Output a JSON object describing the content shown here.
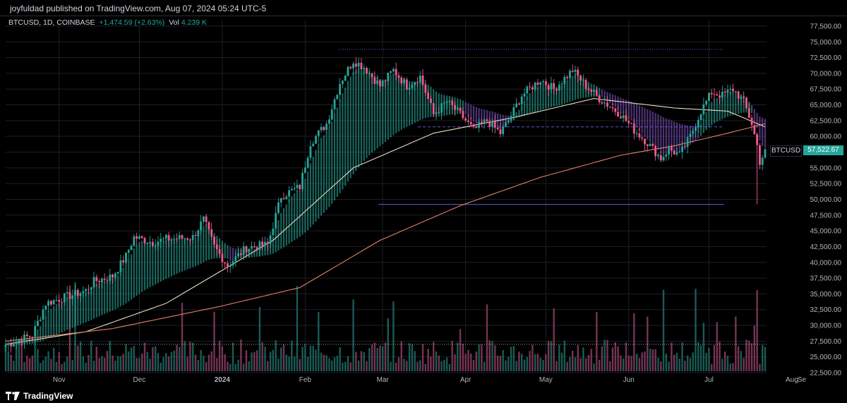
{
  "header": {
    "publisher_line": "joyfuldad published on TradingView.com, Aug 07, 2024 05:24 UTC-5"
  },
  "legend": {
    "symbol": "BTCUSD, 1D, COINBASE",
    "change": "+1,474.59 (+2.63%)",
    "volume_label": "Vol",
    "volume_value": "4.239 K"
  },
  "price_tag": {
    "symbol": "BTCUSD",
    "value": "57,522.67"
  },
  "footer": {
    "logo_text": "TradingView"
  },
  "colors": {
    "up": "#26a69a",
    "down": "#ef5b8c",
    "grid": "#1c1f26",
    "level": "#5b5bd6",
    "ma_fast": "#e8dcc0",
    "ma_slow": "#e0806a"
  },
  "chart_data": {
    "type": "candlestick",
    "ylim": [
      22500,
      78500
    ],
    "y_ticks": [
      "22,500.00",
      "25,000.00",
      "27,500.00",
      "30,000.00",
      "32,500.00",
      "35,000.00",
      "37,500.00",
      "40,000.00",
      "42,500.00",
      "45,000.00",
      "47,500.00",
      "50,000.00",
      "52,500.00",
      "55,000.00",
      "57,500.00",
      "60,000.00",
      "62,500.00",
      "65,000.00",
      "67,500.00",
      "70,000.00",
      "72,500.00",
      "75,000.00",
      "77,500.00"
    ],
    "x_labels": [
      "Nov",
      "Dec",
      "2024",
      "Feb",
      "Mar",
      "Apr",
      "May",
      "Jun",
      "Jul",
      "Aug",
      "Se"
    ],
    "close_path": [
      [
        0,
        26900
      ],
      [
        10,
        28500
      ],
      [
        15,
        33500
      ],
      [
        20,
        34200
      ],
      [
        30,
        35500
      ],
      [
        33,
        37000
      ],
      [
        40,
        37800
      ],
      [
        45,
        41000
      ],
      [
        48,
        44000
      ],
      [
        55,
        43200
      ],
      [
        60,
        43700
      ],
      [
        70,
        44000
      ],
      [
        74,
        46800
      ],
      [
        78,
        42500
      ],
      [
        83,
        39500
      ],
      [
        90,
        42300
      ],
      [
        98,
        42800
      ],
      [
        103,
        50500
      ],
      [
        110,
        52000
      ],
      [
        114,
        59000
      ],
      [
        120,
        62000
      ],
      [
        125,
        68500
      ],
      [
        130,
        72000
      ],
      [
        134,
        71000
      ],
      [
        140,
        68000
      ],
      [
        145,
        70500
      ],
      [
        150,
        68000
      ],
      [
        155,
        69500
      ],
      [
        160,
        63500
      ],
      [
        165,
        65500
      ],
      [
        170,
        63500
      ],
      [
        175,
        61000
      ],
      [
        180,
        62500
      ],
      [
        185,
        60500
      ],
      [
        188,
        62500
      ],
      [
        193,
        66500
      ],
      [
        200,
        69000
      ],
      [
        205,
        67500
      ],
      [
        212,
        70500
      ],
      [
        217,
        68000
      ],
      [
        222,
        66000
      ],
      [
        230,
        63500
      ],
      [
        235,
        61000
      ],
      [
        240,
        59000
      ],
      [
        245,
        56500
      ],
      [
        248,
        58000
      ],
      [
        252,
        57000
      ],
      [
        256,
        60000
      ],
      [
        260,
        64000
      ],
      [
        264,
        67000
      ],
      [
        268,
        66500
      ],
      [
        272,
        67500
      ],
      [
        276,
        65500
      ],
      [
        279,
        62000
      ],
      [
        281,
        58500
      ],
      [
        282,
        56000
      ],
      [
        284,
        57500
      ]
    ],
    "candle_count": 285,
    "series": [
      {
        "name": "BTCUSD",
        "last": 57522.67
      }
    ],
    "horizontal_levels": [
      73800,
      49200,
      27000
    ],
    "dashed_level": 61500,
    "ma_fast_path": [
      [
        0,
        27000
      ],
      [
        30,
        29000
      ],
      [
        60,
        33500
      ],
      [
        80,
        38500
      ],
      [
        100,
        43500
      ],
      [
        130,
        55000
      ],
      [
        160,
        60500
      ],
      [
        190,
        63000
      ],
      [
        220,
        66000
      ],
      [
        250,
        64500
      ],
      [
        270,
        64000
      ],
      [
        284,
        61500
      ]
    ],
    "ma_slow_path": [
      [
        0,
        27500
      ],
      [
        40,
        29500
      ],
      [
        80,
        33000
      ],
      [
        110,
        36000
      ],
      [
        140,
        43500
      ],
      [
        170,
        49000
      ],
      [
        200,
        53500
      ],
      [
        230,
        57000
      ],
      [
        250,
        58500
      ],
      [
        270,
        60500
      ],
      [
        284,
        62000
      ]
    ]
  }
}
